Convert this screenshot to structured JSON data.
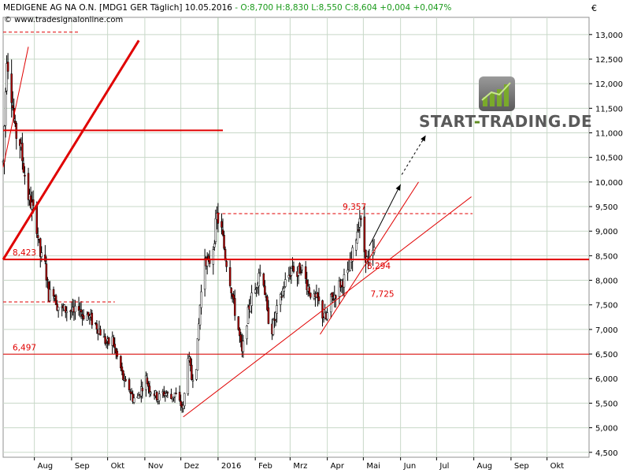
{
  "header": {
    "instrument": "MEDIGENE AG   NA O.N. [MDG1 GER  Täglich] 10.05.2016",
    "ohlc": "- O:8,700 H:8,830 L:8,550 C:8,604 +0,004 +0,047%",
    "source": "© www.tradesignalonline.com",
    "currency": "€"
  },
  "brand": {
    "part1": "START",
    "separator": "-",
    "part2": "TRADING.DE"
  },
  "colors": {
    "candle_up": "#ffffff",
    "candle_down": "#b00000",
    "wick": "#000000",
    "line_red": "#e00000",
    "grid": "#c8d8c8",
    "ohlc_green": "#1a9a1a",
    "brand_gray": "#5a5a5a",
    "brand_green": "#6a9a2a"
  },
  "chart_data": {
    "type": "candlestick",
    "title": "MEDIGENE AG   NA O.N. [MDG1 GER  Täglich] 10.05.2016",
    "y_axis": {
      "label": "€",
      "range": [
        4.4,
        13.35
      ],
      "ticks": [
        4.5,
        5.0,
        5.5,
        6.0,
        6.5,
        7.0,
        7.5,
        8.0,
        8.5,
        9.0,
        9.5,
        10.0,
        10.5,
        11.0,
        11.5,
        12.0,
        12.5,
        13.0
      ],
      "tick_labels": [
        "4,500",
        "5,000",
        "5,500",
        "6,000",
        "6,500",
        "7,000",
        "7,500",
        "8,000",
        "8,500",
        "9,000",
        "9,500",
        "10,000",
        "10,500",
        "11,000",
        "11,500",
        "12,000",
        "12,500",
        "13,000"
      ]
    },
    "x_axis": {
      "start": "2015-07-06",
      "end": "2016-11-05",
      "tick_labels": [
        {
          "date": "2015-08-01",
          "label": "Aug"
        },
        {
          "date": "2015-09-01",
          "label": "Sep"
        },
        {
          "date": "2015-10-01",
          "label": "Okt"
        },
        {
          "date": "2015-11-01",
          "label": "Nov"
        },
        {
          "date": "2015-12-01",
          "label": "Dez"
        },
        {
          "date": "2016-01-01",
          "label": "2016"
        },
        {
          "date": "2016-02-01",
          "label": "Feb"
        },
        {
          "date": "2016-03-01",
          "label": "Mrz"
        },
        {
          "date": "2016-04-01",
          "label": "Apr"
        },
        {
          "date": "2016-05-01",
          "label": "Mai"
        },
        {
          "date": "2016-06-01",
          "label": "Jun"
        },
        {
          "date": "2016-07-01",
          "label": "Jul"
        },
        {
          "date": "2016-08-01",
          "label": "Aug"
        },
        {
          "date": "2016-09-01",
          "label": "Sep"
        },
        {
          "date": "2016-10-01",
          "label": "Okt"
        }
      ]
    },
    "grid": true,
    "price_path": [
      [
        "2015-07-06",
        10.4
      ],
      [
        "2015-07-09",
        12.6
      ],
      [
        "2015-07-13",
        11.8
      ],
      [
        "2015-07-16",
        11.0
      ],
      [
        "2015-07-20",
        10.8
      ],
      [
        "2015-07-23",
        10.3
      ],
      [
        "2015-07-27",
        9.7
      ],
      [
        "2015-07-30",
        9.5
      ],
      [
        "2015-08-03",
        9.1
      ],
      [
        "2015-08-06",
        8.5
      ],
      [
        "2015-08-10",
        8.3
      ],
      [
        "2015-08-13",
        7.7
      ],
      [
        "2015-08-17",
        7.8
      ],
      [
        "2015-08-20",
        7.5
      ],
      [
        "2015-08-24",
        7.4
      ],
      [
        "2015-08-27",
        7.4
      ],
      [
        "2015-08-31",
        7.4
      ],
      [
        "2015-09-03",
        7.3
      ],
      [
        "2015-09-07",
        7.5
      ],
      [
        "2015-09-10",
        7.3
      ],
      [
        "2015-09-14",
        7.3
      ],
      [
        "2015-09-17",
        7.2
      ],
      [
        "2015-09-21",
        7.1
      ],
      [
        "2015-09-24",
        7.0
      ],
      [
        "2015-09-28",
        6.8
      ],
      [
        "2015-10-01",
        6.7
      ],
      [
        "2015-10-05",
        6.8
      ],
      [
        "2015-10-08",
        6.5
      ],
      [
        "2015-10-12",
        6.2
      ],
      [
        "2015-10-15",
        5.9
      ],
      [
        "2015-10-19",
        5.8
      ],
      [
        "2015-10-22",
        5.6
      ],
      [
        "2015-10-26",
        5.6
      ],
      [
        "2015-10-29",
        5.8
      ],
      [
        "2015-11-02",
        6.0
      ],
      [
        "2015-11-05",
        5.8
      ],
      [
        "2015-11-09",
        5.7
      ],
      [
        "2015-11-12",
        5.6
      ],
      [
        "2015-11-16",
        5.7
      ],
      [
        "2015-11-19",
        5.7
      ],
      [
        "2015-11-23",
        5.6
      ],
      [
        "2015-11-26",
        5.7
      ],
      [
        "2015-11-30",
        5.5
      ],
      [
        "2015-12-03",
        5.4
      ],
      [
        "2015-12-07",
        6.5
      ],
      [
        "2015-12-10",
        6.0
      ],
      [
        "2015-12-14",
        6.3
      ],
      [
        "2015-12-17",
        7.5
      ],
      [
        "2015-12-21",
        8.5
      ],
      [
        "2015-12-24",
        8.3
      ],
      [
        "2015-12-28",
        8.7
      ],
      [
        "2015-12-31",
        9.3
      ],
      [
        "2016-01-04",
        9.0
      ],
      [
        "2016-01-07",
        8.5
      ],
      [
        "2016-01-11",
        8.0
      ],
      [
        "2016-01-14",
        7.5
      ],
      [
        "2016-01-18",
        7.0
      ],
      [
        "2016-01-21",
        6.5
      ],
      [
        "2016-01-25",
        7.2
      ],
      [
        "2016-01-28",
        7.6
      ],
      [
        "2016-02-01",
        7.8
      ],
      [
        "2016-02-04",
        8.2
      ],
      [
        "2016-02-08",
        8.0
      ],
      [
        "2016-02-11",
        7.3
      ],
      [
        "2016-02-15",
        7.0
      ],
      [
        "2016-02-18",
        7.3
      ],
      [
        "2016-02-22",
        7.6
      ],
      [
        "2016-02-25",
        7.9
      ],
      [
        "2016-02-29",
        8.1
      ],
      [
        "2016-03-03",
        8.3
      ],
      [
        "2016-03-07",
        8.1
      ],
      [
        "2016-03-10",
        8.3
      ],
      [
        "2016-03-14",
        8.0
      ],
      [
        "2016-03-17",
        7.8
      ],
      [
        "2016-03-21",
        7.6
      ],
      [
        "2016-03-24",
        7.6
      ],
      [
        "2016-03-28",
        7.3
      ],
      [
        "2016-03-31",
        7.2
      ],
      [
        "2016-04-04",
        7.6
      ],
      [
        "2016-04-07",
        7.7
      ],
      [
        "2016-04-11",
        7.9
      ],
      [
        "2016-04-14",
        8.0
      ],
      [
        "2016-04-18",
        8.1
      ],
      [
        "2016-04-21",
        8.4
      ],
      [
        "2016-04-25",
        8.9
      ],
      [
        "2016-04-28",
        9.3
      ],
      [
        "2016-05-02",
        8.6
      ],
      [
        "2016-05-05",
        8.3
      ],
      [
        "2016-05-10",
        8.6
      ]
    ],
    "horizontal_lines": [
      {
        "value": 11.05,
        "style": "solid",
        "width": "thick",
        "from": "2015-07-06",
        "to": "2016-01-05"
      },
      {
        "value": 8.423,
        "label": "8,423",
        "style": "solid",
        "width": "thick",
        "from": "2015-07-06",
        "to": "2016-11-05"
      },
      {
        "value": 6.497,
        "label": "6,497",
        "style": "solid",
        "width": "thin",
        "from": "2015-07-06",
        "to": "2016-11-05"
      },
      {
        "value": 13.05,
        "style": "dashed",
        "from": "2015-07-06",
        "to": "2015-09-08"
      },
      {
        "value": 7.56,
        "style": "dashed",
        "from": "2015-07-06",
        "to": "2015-10-07"
      },
      {
        "value": 9.357,
        "label": "9,357",
        "style": "dashed",
        "from": "2015-12-31",
        "to": "2016-07-31"
      }
    ],
    "level_labels": [
      {
        "value": 8.294,
        "label": "8,294",
        "date": "2016-05-04"
      },
      {
        "value": 7.725,
        "label": "7,725",
        "date": "2016-05-07"
      }
    ],
    "trend_lines": [
      {
        "from": [
          "2015-07-06",
          8.423
        ],
        "to": [
          "2015-10-27",
          12.88
        ],
        "width": "thick"
      },
      {
        "from": [
          "2015-07-06",
          10.3
        ],
        "to": [
          "2015-07-27",
          12.75
        ],
        "width": "thin"
      },
      {
        "from": [
          "2015-12-03",
          5.22
        ],
        "to": [
          "2016-07-30",
          9.7
        ],
        "width": "thin"
      },
      {
        "from": [
          "2016-03-26",
          6.9
        ],
        "to": [
          "2016-06-16",
          10.0
        ],
        "width": "thin"
      }
    ],
    "arrows": [
      {
        "from": [
          "2016-05-06",
          8.7
        ],
        "to": [
          "2016-06-01",
          9.95
        ],
        "style": "solid"
      },
      {
        "from": [
          "2016-06-02",
          10.15
        ],
        "to": [
          "2016-06-22",
          10.95
        ],
        "style": "dashed"
      }
    ]
  }
}
